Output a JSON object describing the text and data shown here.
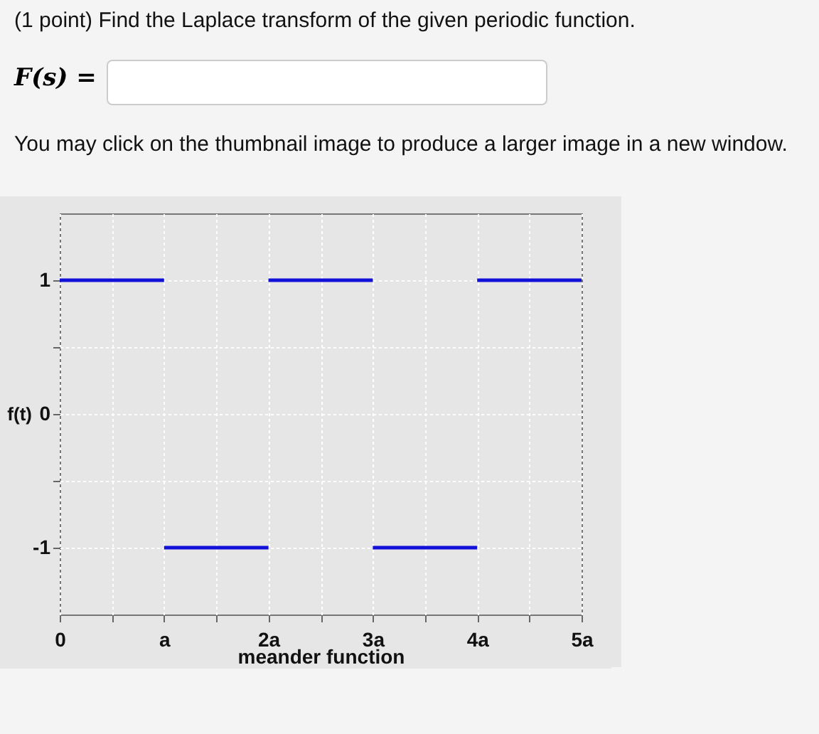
{
  "chart_data": {
    "type": "line",
    "title": "(1 point) Find the Laplace transform of the given periodic function.",
    "annotations": [
      "F(s) =",
      "You may click on the thumbnail image to produce a larger image in a new window."
    ],
    "xlabel": "meander function",
    "ylabel": "f(t)",
    "series": [
      {
        "color": "#1010d8",
        "x": [
          0,
          1
        ],
        "values": [
          1,
          1
        ]
      },
      {
        "color": "#1010d8",
        "x": [
          1,
          2
        ],
        "values": [
          -1,
          -1
        ]
      },
      {
        "color": "#1010d8",
        "x": [
          2,
          3
        ],
        "values": [
          1,
          1
        ]
      },
      {
        "color": "#1010d8",
        "x": [
          3,
          4
        ],
        "values": [
          -1,
          -1
        ]
      },
      {
        "color": "#1010d8",
        "x": [
          4,
          5
        ],
        "values": [
          1,
          1
        ]
      }
    ],
    "xlim": [
      0,
      5
    ],
    "xticks": [
      0,
      {
        "value": 0.5,
        "label": null
      },
      {
        "value": 1,
        "label": "a"
      },
      {
        "value": 1.5,
        "label": null
      },
      {
        "value": 2,
        "label": "2a"
      },
      {
        "value": 2.5,
        "label": null
      },
      {
        "value": 3,
        "label": "3a"
      },
      {
        "value": 3.5,
        "label": null
      },
      {
        "value": 4,
        "label": "4a"
      },
      {
        "value": 4.5,
        "label": null
      },
      {
        "value": 5,
        "label": "5a"
      }
    ],
    "ylim": [
      -1.5,
      1.5
    ],
    "yticks": [
      -1,
      {
        "value": -0.5,
        "label": null
      },
      0,
      {
        "value": 0.5,
        "label": null
      },
      1
    ],
    "grid": true,
    "line_style": "solid",
    "marker": "none"
  }
}
